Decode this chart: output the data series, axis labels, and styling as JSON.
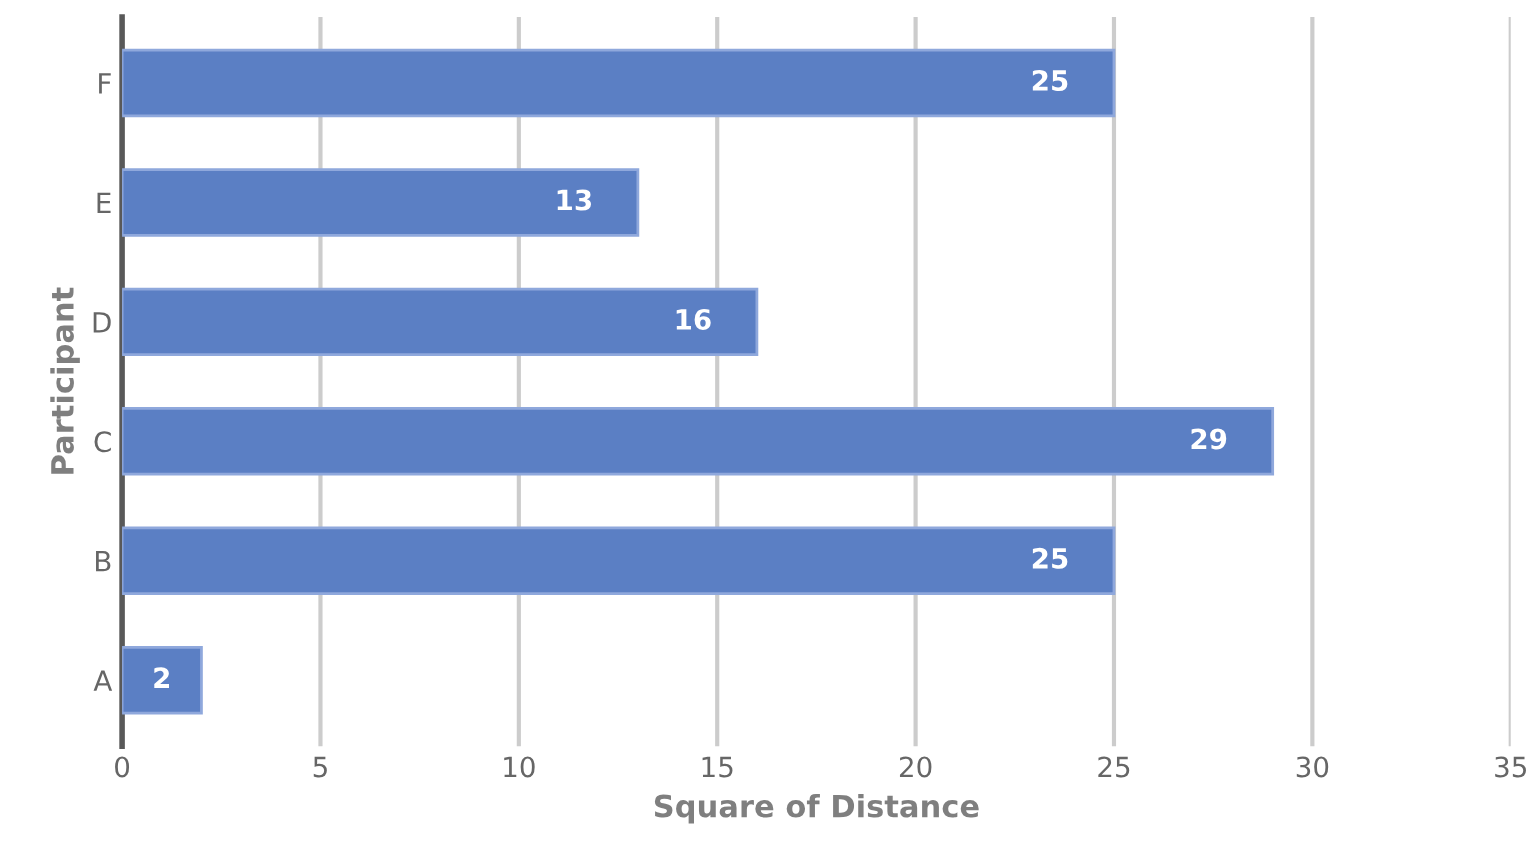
{
  "chart_data": {
    "type": "bar",
    "orientation": "horizontal",
    "categories": [
      "F",
      "E",
      "D",
      "C",
      "B",
      "A"
    ],
    "values": [
      25,
      13,
      16,
      29,
      25,
      2
    ],
    "color": "#5b7fc4",
    "xlim": [
      0,
      35
    ],
    "xticks": [
      0,
      5,
      10,
      15,
      20,
      25,
      30,
      35
    ],
    "xlabel": "Square of Distance",
    "ylabel": "Participant",
    "grid": "x",
    "data_labels": true
  }
}
